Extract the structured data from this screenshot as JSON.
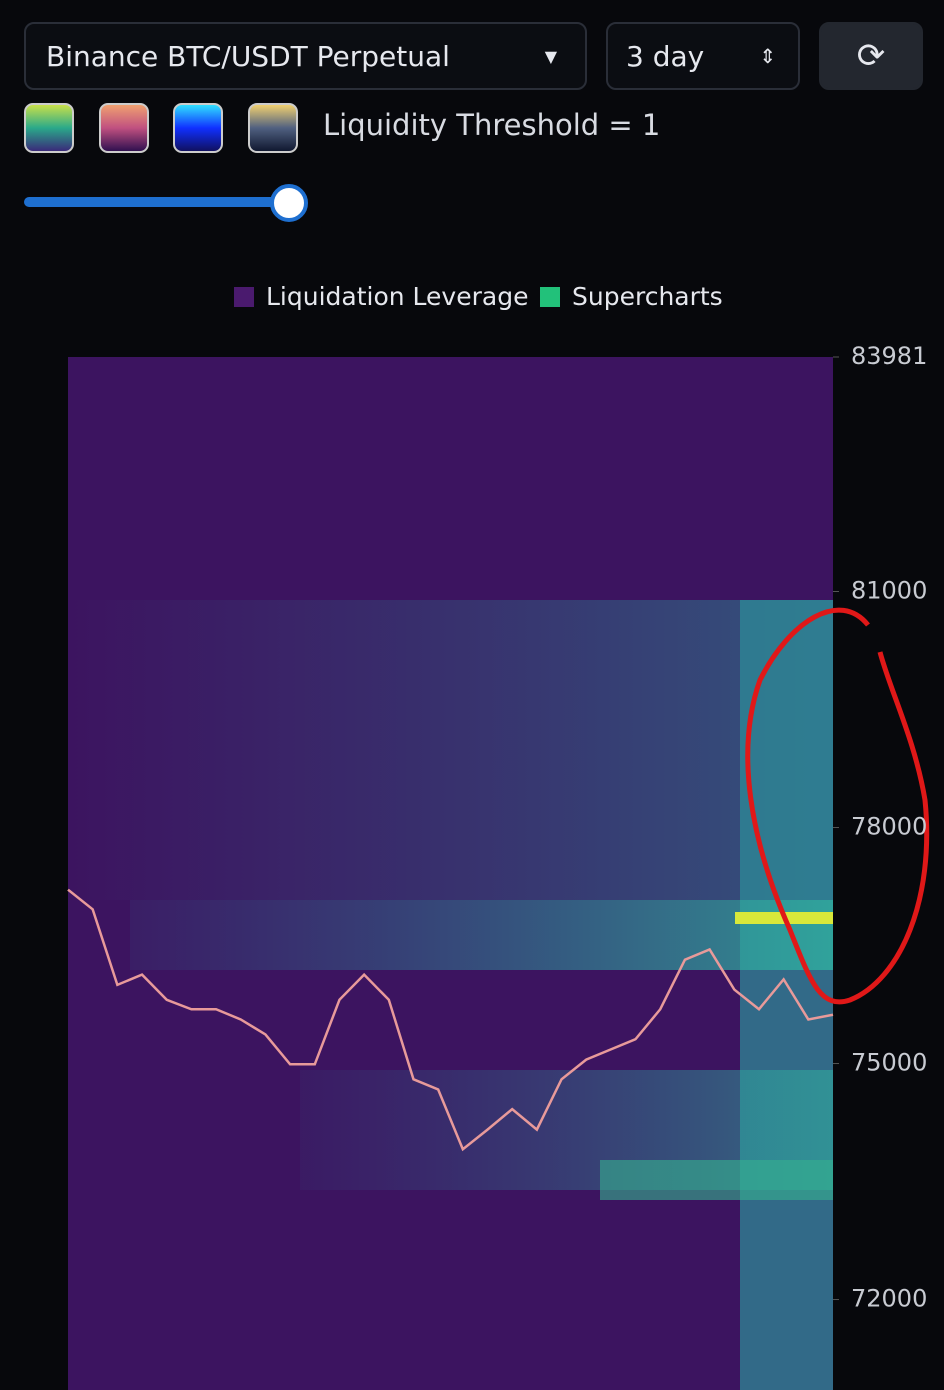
{
  "controls": {
    "market": "Binance BTC/USDT Perpetual",
    "period": "3 day",
    "threshold": "Liquidity Threshold = 1"
  },
  "chart_data": {
    "type": "heatmap",
    "series": [
      {
        "name": "Liquidation Leverage",
        "color": "#4a1a6e"
      },
      {
        "name": "Supercharts",
        "color": "#22c17a",
        "values": [
          77210,
          76960,
          76000,
          76130,
          75810,
          75690,
          75690,
          75560,
          75370,
          74990,
          74990,
          75810,
          76130,
          75810,
          74800,
          74670,
          73910,
          74160,
          74420,
          74160,
          74800,
          75050,
          75180,
          75310,
          75690,
          76320,
          76450,
          75940,
          75690,
          76070,
          75560,
          75620
        ]
      }
    ],
    "ylim": [
      70850,
      83981
    ],
    "yticks": [
      72000,
      75000,
      78000,
      81000,
      83981
    ]
  }
}
